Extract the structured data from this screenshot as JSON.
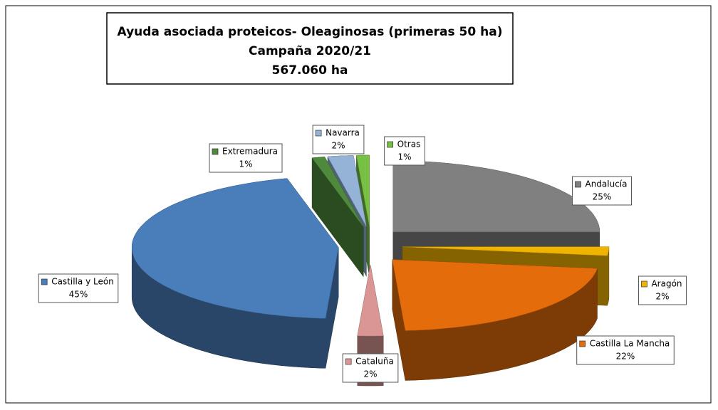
{
  "chart_data": {
    "type": "pie",
    "title_lines": [
      "Ayuda asociada proteicos- Oleaginosas (primeras 50 ha)",
      "Campaña 2020/21",
      "567.060 ha"
    ],
    "categories": [
      "Andalucía",
      "Aragón",
      "Castilla La Mancha",
      "Cataluña",
      "Castilla y León",
      "Extremadura",
      "Navarra",
      "Otras"
    ],
    "values": [
      25,
      2,
      22,
      2,
      45,
      1,
      2,
      1
    ],
    "value_labels": [
      "25%",
      "2%",
      "22%",
      "2%",
      "45%",
      "1%",
      "2%",
      "1%"
    ],
    "colors": [
      "#808080",
      "#f0b400",
      "#e46c0a",
      "#d99694",
      "#4a7ebb",
      "#4f8a3c",
      "#95b3d7",
      "#77c043"
    ],
    "legend": false
  }
}
